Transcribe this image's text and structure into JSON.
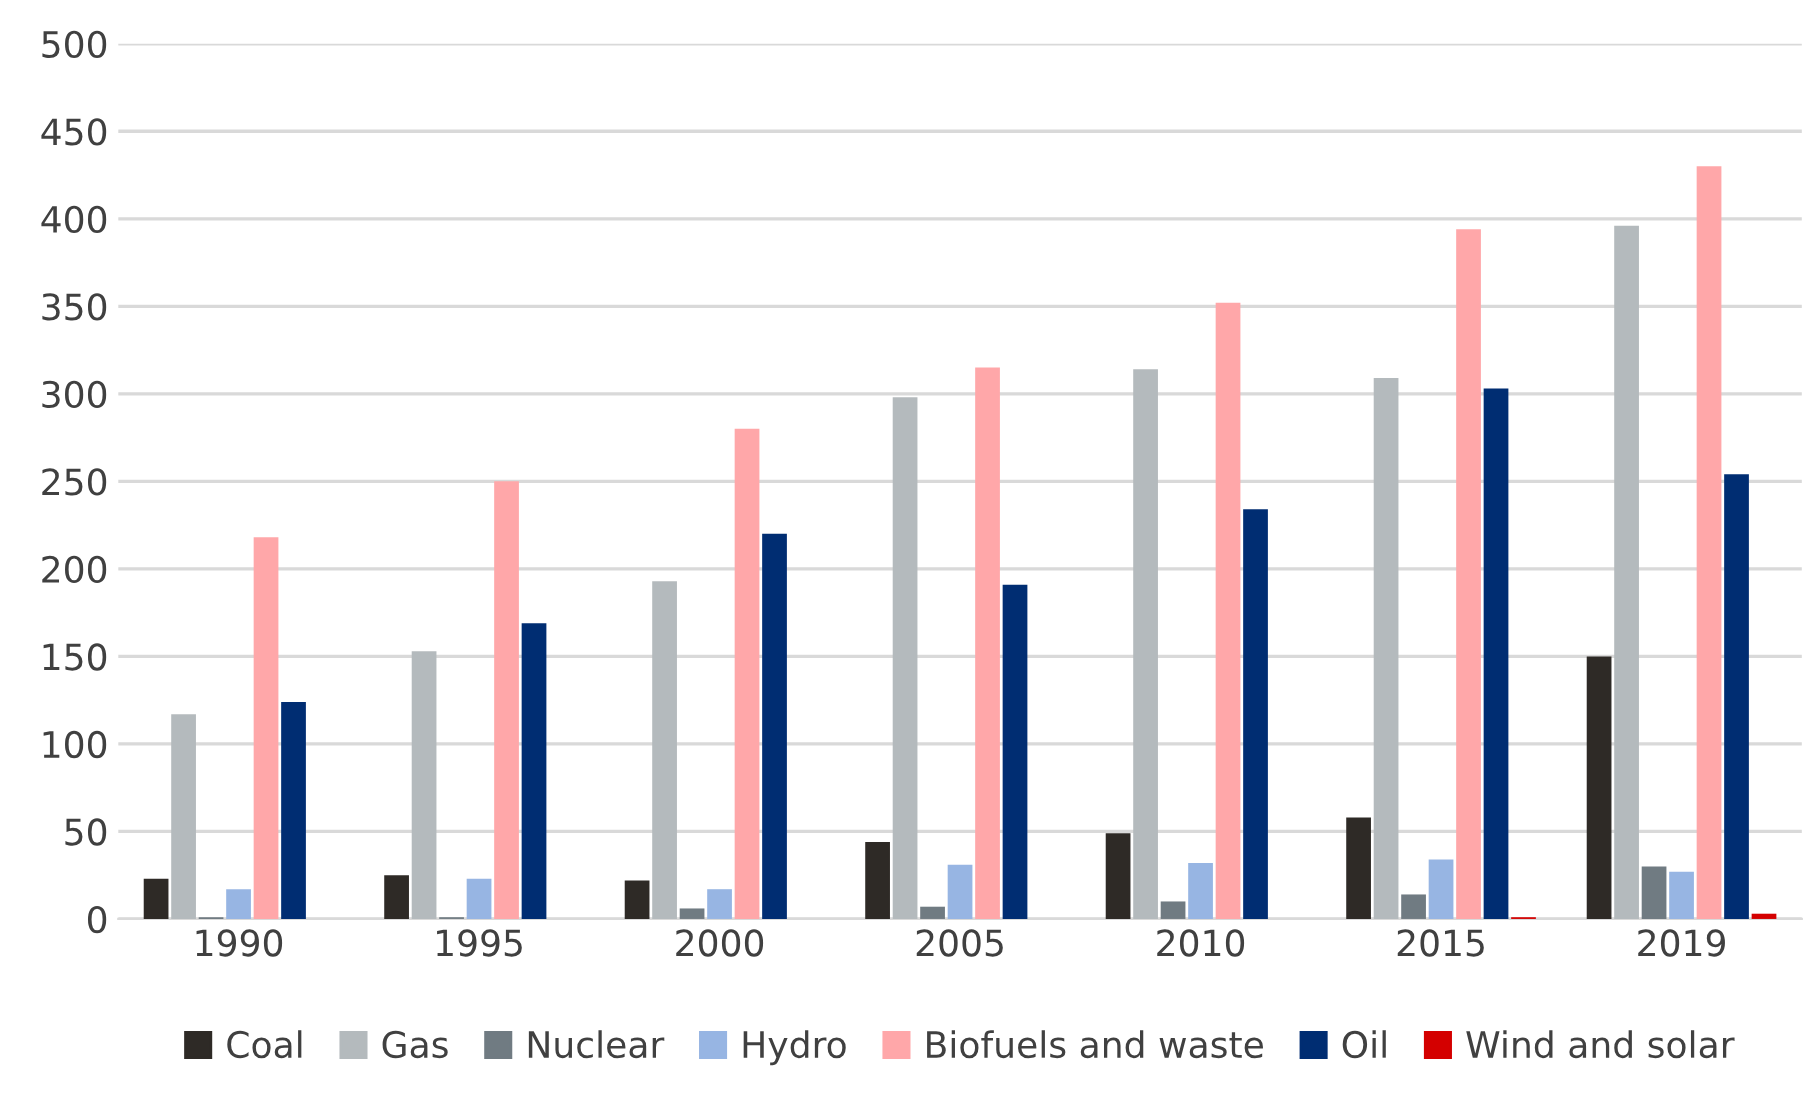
{
  "chart_data": {
    "type": "bar",
    "categories": [
      "1990",
      "1995",
      "2000",
      "2005",
      "2010",
      "2015",
      "2019"
    ],
    "series": [
      {
        "name": "Coal",
        "color": "#2e2a26",
        "values": [
          23,
          25,
          22,
          44,
          49,
          58,
          150
        ]
      },
      {
        "name": "Gas",
        "color": "#b4babd",
        "values": [
          117,
          153,
          193,
          298,
          314,
          309,
          396
        ]
      },
      {
        "name": "Nuclear",
        "color": "#707b82",
        "values": [
          1,
          1,
          6,
          7,
          10,
          14,
          30
        ]
      },
      {
        "name": "Hydro",
        "color": "#97b5e3",
        "values": [
          17,
          23,
          17,
          31,
          32,
          34,
          27
        ]
      },
      {
        "name": "Biofuels and waste",
        "color": "#ffa7a9",
        "values": [
          218,
          250,
          280,
          315,
          352,
          394,
          430
        ]
      },
      {
        "name": "Oil",
        "color": "#002d72",
        "values": [
          124,
          169,
          220,
          191,
          234,
          303,
          254
        ]
      },
      {
        "name": "Wind and solar",
        "color": "#d40000",
        "values": [
          0,
          0,
          0,
          0,
          0,
          1,
          3
        ]
      }
    ],
    "ylim": [
      0,
      500
    ],
    "yticks": [
      0,
      50,
      100,
      150,
      200,
      250,
      300,
      350,
      400,
      450,
      500
    ],
    "grid": "y",
    "legend": "bottom"
  }
}
